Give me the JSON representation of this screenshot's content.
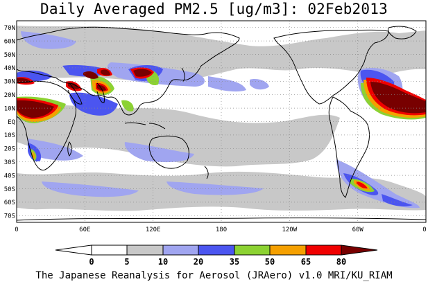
{
  "title": "Daily Averaged PM2.5 [ug/m3]: 02Feb2013",
  "footer": "The Japanese Reanalysis for Aerosol (JRAero) v1.0 MRI/KU_RIAM",
  "lat_labels": [
    "70N",
    "60N",
    "50N",
    "40N",
    "30N",
    "20N",
    "10N",
    "EQ",
    "10S",
    "20S",
    "30S",
    "40S",
    "50S",
    "60S",
    "70S"
  ],
  "lon_labels": [
    "0",
    "60E",
    "120E",
    "180",
    "120W",
    "60W",
    "0"
  ],
  "colorbar": {
    "ticks": [
      "0",
      "5",
      "10",
      "20",
      "35",
      "50",
      "65",
      "80"
    ],
    "colors": [
      "#ffffff",
      "#c8c8c8",
      "#a0a5f0",
      "#4b55f0",
      "#8cd232",
      "#f5a000",
      "#f00000",
      "#780000"
    ]
  },
  "map_data": {
    "lat_range": [
      -75,
      75
    ],
    "lon_range": [
      0,
      360
    ]
  }
}
